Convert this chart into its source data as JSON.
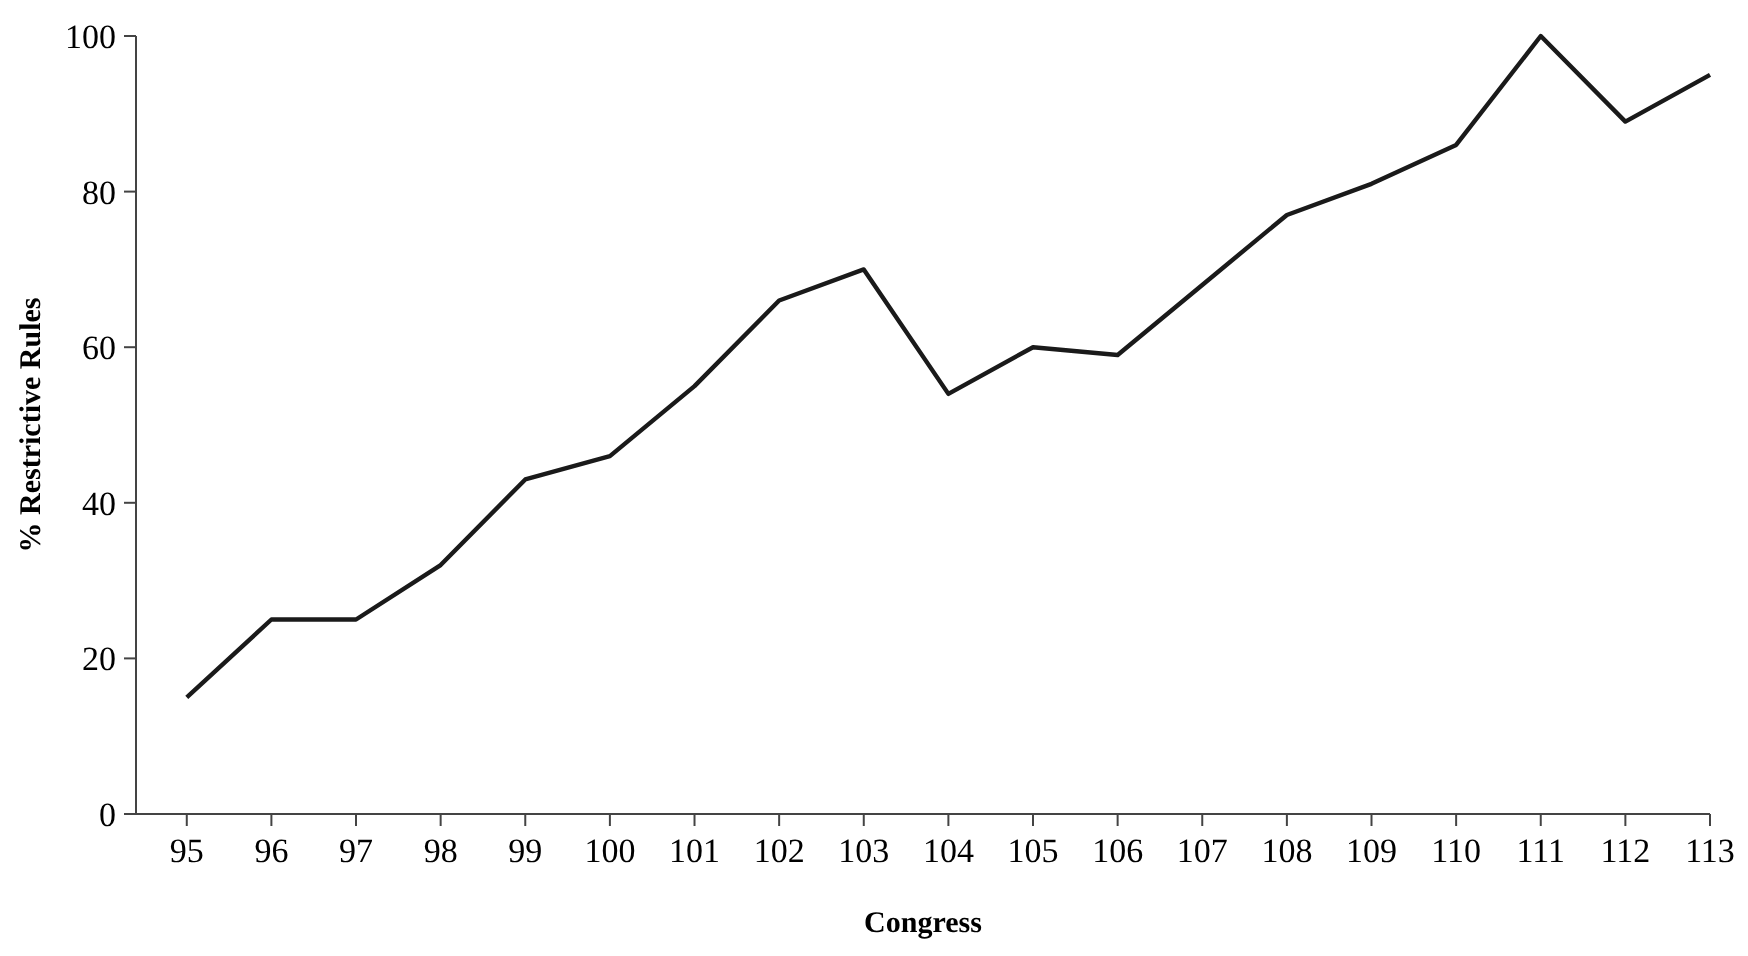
{
  "chart_data": {
    "type": "line",
    "xlabel": "Congress",
    "ylabel": "% Restrictive Rules",
    "x": [
      95,
      96,
      97,
      98,
      99,
      100,
      101,
      102,
      103,
      104,
      105,
      106,
      107,
      108,
      109,
      110,
      111,
      112,
      113
    ],
    "series": [
      {
        "color": "#1a1a1a",
        "values": [
          15,
          25,
          25,
          32,
          43,
          46,
          55,
          66,
          70,
          54,
          60,
          59,
          68,
          77,
          81,
          86,
          100,
          89,
          95
        ]
      }
    ],
    "xlim": [
      94.4,
      113
    ],
    "xticks": [
      95,
      96,
      97,
      98,
      99,
      100,
      101,
      102,
      103,
      104,
      105,
      106,
      107,
      108,
      109,
      110,
      111,
      112,
      113
    ],
    "ylim": [
      0,
      100
    ],
    "yticks": [
      0,
      20,
      40,
      60,
      80,
      100
    ],
    "marker": "none",
    "line_style": "solid"
  }
}
